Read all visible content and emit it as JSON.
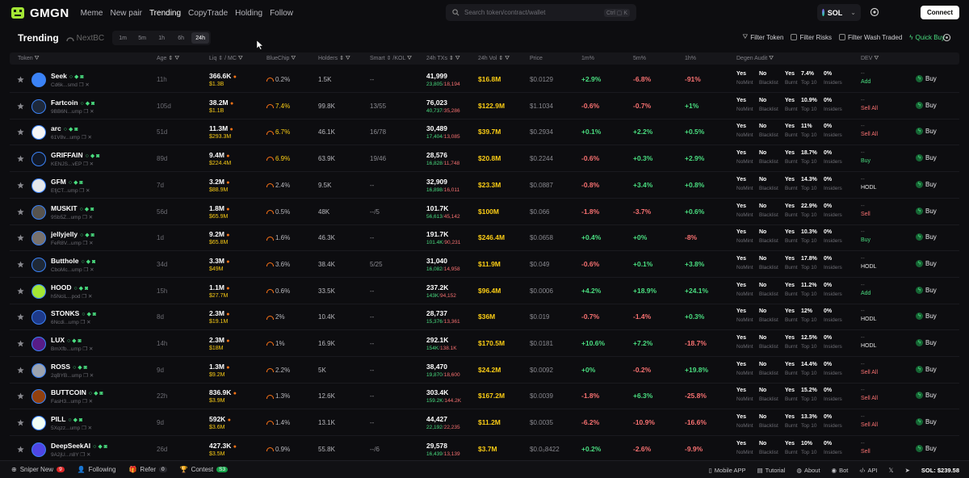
{
  "app": {
    "name": "GMGN"
  },
  "nav": {
    "items": [
      "Meme",
      "New pair",
      "Trending",
      "CopyTrade",
      "Holding",
      "Follow"
    ],
    "active": "Trending"
  },
  "search": {
    "placeholder": "Search token/contract/wallet",
    "shortcut": "Ctrl ▢ K"
  },
  "chain": {
    "label": "SOL"
  },
  "connect_label": "Connect",
  "subheader": {
    "title": "Trending",
    "nextbc": "NextBC",
    "timeframes": [
      "1m",
      "5m",
      "1h",
      "6h",
      "24h"
    ],
    "active_timeframe": "24h",
    "filters": [
      "Filter Token",
      "Filter Risks",
      "Filter Wash Traded",
      "Quick Buy"
    ]
  },
  "columns": [
    "Token",
    "Age",
    "Liq ⇕ / MC",
    "BlueChip",
    "Holders",
    "Smart ⇕ /KOL",
    "24h TXs",
    "24h Vol",
    "Price",
    "1m%",
    "5m%",
    "1h%",
    "Degen Audit",
    "DEV"
  ],
  "audit_labels": {
    "nomint": "NoMint",
    "blacklist": "Blacklist",
    "burnt": "Burnt",
    "top10": "Top 10",
    "insiders": "Insiders"
  },
  "buy_label": "Buy",
  "rows": [
    {
      "name": "Seek",
      "addr": "Cd6k...smd",
      "age": "11h",
      "liq": "366.6K",
      "mc": "$1.3B",
      "bluechip": "0.2%",
      "holders": "1.5K",
      "smart": "--",
      "txs": "41,999",
      "buys": "23,805",
      "sells": "18,194",
      "vol": "$16.8M",
      "price": "$0.0129",
      "m1": "+2.9%",
      "m5": "-6.8%",
      "h1": "-91%",
      "a1": "Yes",
      "a2": "No",
      "a3": "Yes",
      "a4": "7.4%",
      "a5": "0%",
      "dev": "Add",
      "av": "#3b82f6"
    },
    {
      "name": "Fartcoin",
      "addr": "9BB6N...ump",
      "age": "105d",
      "liq": "38.2M",
      "mc": "$1.1B",
      "bluechip": "7.4%",
      "holders": "99.8K",
      "smart": "13/55",
      "txs": "76,023",
      "buys": "40,737",
      "sells": "35,286",
      "vol": "$122.9M",
      "price": "$1.1034",
      "m1": "-0.6%",
      "m5": "-0.7%",
      "h1": "+1%",
      "a1": "Yes",
      "a2": "No",
      "a3": "Yes",
      "a4": "10.9%",
      "a5": "0%",
      "dev": "Sell All",
      "av": "#1e293b"
    },
    {
      "name": "arc",
      "addr": "61V8v...ump",
      "age": "51d",
      "liq": "11.3M",
      "mc": "$293.3M",
      "bluechip": "6.7%",
      "holders": "46.1K",
      "smart": "16/78",
      "txs": "30,489",
      "buys": "17,404",
      "sells": "13,085",
      "vol": "$39.7M",
      "price": "$0.2934",
      "m1": "+0.1%",
      "m5": "+2.2%",
      "h1": "+0.5%",
      "a1": "Yes",
      "a2": "No",
      "a3": "Yes",
      "a4": "11%",
      "a5": "0%",
      "dev": "Sell All",
      "av": "#f5f5f5"
    },
    {
      "name": "GRIFFAIN",
      "addr": "KENJS...vEP",
      "age": "89d",
      "liq": "9.4M",
      "mc": "$224.4M",
      "bluechip": "6.9%",
      "holders": "63.9K",
      "smart": "19/46",
      "txs": "28,576",
      "buys": "16,828",
      "sells": "11,748",
      "vol": "$20.8M",
      "price": "$0.2244",
      "m1": "-0.6%",
      "m5": "+0.3%",
      "h1": "+2.9%",
      "a1": "Yes",
      "a2": "No",
      "a3": "Yes",
      "a4": "18.7%",
      "a5": "0%",
      "dev": "Buy",
      "av": "#111827"
    },
    {
      "name": "GFM",
      "addr": "EfjCT...ump",
      "age": "7d",
      "liq": "3.2M",
      "mc": "$88.9M",
      "bluechip": "2.4%",
      "holders": "9.5K",
      "smart": "--",
      "txs": "32,909",
      "buys": "16,898",
      "sells": "16,011",
      "vol": "$23.3M",
      "price": "$0.0887",
      "m1": "-0.8%",
      "m5": "+3.4%",
      "h1": "+0.8%",
      "a1": "Yes",
      "a2": "No",
      "a3": "Yes",
      "a4": "14.3%",
      "a5": "0%",
      "dev": "HODL",
      "av": "#e5e7eb"
    },
    {
      "name": "MUSKIT",
      "addr": "9Sb5Z...ump",
      "age": "56d",
      "liq": "1.8M",
      "mc": "$65.9M",
      "bluechip": "0.5%",
      "holders": "48K",
      "smart": "--/5",
      "txs": "101.7K",
      "buys": "56,613",
      "sells": "45,142",
      "vol": "$100M",
      "price": "$0.066",
      "m1": "-1.8%",
      "m5": "-3.7%",
      "h1": "+0.6%",
      "a1": "Yes",
      "a2": "No",
      "a3": "Yes",
      "a4": "22.9%",
      "a5": "0%",
      "dev": "Sell",
      "av": "#57534e"
    },
    {
      "name": "jellyjelly",
      "addr": "FeR8V...ump",
      "age": "1d",
      "liq": "9.2M",
      "mc": "$65.8M",
      "bluechip": "1.6%",
      "holders": "46.3K",
      "smart": "--",
      "txs": "191.7K",
      "buys": "101.4K",
      "sells": "90,231",
      "vol": "$246.4M",
      "price": "$0.0658",
      "m1": "+0.4%",
      "m5": "+0%",
      "h1": "-8%",
      "a1": "Yes",
      "a2": "No",
      "a3": "Yes",
      "a4": "10.3%",
      "a5": "0%",
      "dev": "Buy",
      "av": "#78716c"
    },
    {
      "name": "Butthole",
      "addr": "CboMc...ump",
      "age": "34d",
      "liq": "3.3M",
      "mc": "$49M",
      "bluechip": "3.6%",
      "holders": "38.4K",
      "smart": "5/25",
      "txs": "31,040",
      "buys": "16,082",
      "sells": "14,958",
      "vol": "$11.9M",
      "price": "$0.049",
      "m1": "-0.6%",
      "m5": "+0.1%",
      "h1": "+3.8%",
      "a1": "Yes",
      "a2": "No",
      "a3": "Yes",
      "a4": "17.8%",
      "a5": "0%",
      "dev": "HODL",
      "av": "#1f2937"
    },
    {
      "name": "HOOD",
      "addr": "h5NciL...pod",
      "age": "15h",
      "liq": "1.1M",
      "mc": "$27.7M",
      "bluechip": "0.6%",
      "holders": "33.5K",
      "smart": "--",
      "txs": "237.2K",
      "buys": "143K",
      "sells": "94,152",
      "vol": "$96.4M",
      "price": "$0.0006",
      "m1": "+4.2%",
      "m5": "+18.9%",
      "h1": "+24.1%",
      "a1": "Yes",
      "a2": "No",
      "a3": "Yes",
      "a4": "11.2%",
      "a5": "0%",
      "dev": "Add",
      "av": "#a3e635"
    },
    {
      "name": "STONKS",
      "addr": "6Ncdi...ump",
      "age": "8d",
      "liq": "2.3M",
      "mc": "$19.1M",
      "bluechip": "2%",
      "holders": "10.4K",
      "smart": "--",
      "txs": "28,737",
      "buys": "15,376",
      "sells": "13,361",
      "vol": "$36M",
      "price": "$0.019",
      "m1": "-0.7%",
      "m5": "-1.4%",
      "h1": "+0.3%",
      "a1": "Yes",
      "a2": "No",
      "a3": "Yes",
      "a4": "12%",
      "a5": "0%",
      "dev": "HODL",
      "av": "#1e3a8a"
    },
    {
      "name": "LUX",
      "addr": "BmXfb...ump",
      "age": "14h",
      "liq": "2.3M",
      "mc": "$18M",
      "bluechip": "1%",
      "holders": "16.9K",
      "smart": "--",
      "txs": "292.1K",
      "buys": "154K",
      "sells": "138.1K",
      "vol": "$170.5M",
      "price": "$0.0181",
      "m1": "+10.6%",
      "m5": "+7.2%",
      "h1": "-18.7%",
      "a1": "Yes",
      "a2": "No",
      "a3": "Yes",
      "a4": "12.5%",
      "a5": "0%",
      "dev": "HODL",
      "av": "#581c87"
    },
    {
      "name": "ROSS",
      "addr": "2qBYB...ump",
      "age": "9d",
      "liq": "1.3M",
      "mc": "$9.2M",
      "bluechip": "2.2%",
      "holders": "5K",
      "smart": "--",
      "txs": "38,470",
      "buys": "19,870",
      "sells": "18,600",
      "vol": "$24.2M",
      "price": "$0.0092",
      "m1": "+0%",
      "m5": "-0.2%",
      "h1": "+19.8%",
      "a1": "Yes",
      "a2": "No",
      "a3": "Yes",
      "a4": "14.4%",
      "a5": "0%",
      "dev": "Sell All",
      "av": "#9ca3af"
    },
    {
      "name": "BUTTCOIN",
      "addr": "FasH3...ump",
      "age": "22h",
      "liq": "836.9K",
      "mc": "$3.9M",
      "bluechip": "1.3%",
      "holders": "12.6K",
      "smart": "--",
      "txs": "303.4K",
      "buys": "159.2K",
      "sells": "144.2K",
      "vol": "$167.2M",
      "price": "$0.0039",
      "m1": "-1.8%",
      "m5": "+6.3%",
      "h1": "-25.8%",
      "a1": "Yes",
      "a2": "No",
      "a3": "Yes",
      "a4": "15.2%",
      "a5": "0%",
      "dev": "Sell All",
      "av": "#92400e"
    },
    {
      "name": "PILL",
      "addr": "5Xqzz...ump",
      "age": "9d",
      "liq": "592K",
      "mc": "$3.6M",
      "bluechip": "1.4%",
      "holders": "13.1K",
      "smart": "--",
      "txs": "44,427",
      "buys": "22,192",
      "sells": "22,235",
      "vol": "$11.2M",
      "price": "$0.0035",
      "m1": "-6.2%",
      "m5": "-10.9%",
      "h1": "-16.6%",
      "a1": "Yes",
      "a2": "No",
      "a3": "Yes",
      "a4": "13.3%",
      "a5": "0%",
      "dev": "Sell All",
      "av": "#f0fdf4"
    },
    {
      "name": "DeepSeekAI",
      "addr": "9A2jU...n8Y",
      "age": "26d",
      "liq": "427.3K",
      "mc": "$3.5M",
      "bluechip": "0.9%",
      "holders": "55.8K",
      "smart": "--/6",
      "txs": "29,578",
      "buys": "16,439",
      "sells": "13,139",
      "vol": "$3.7M",
      "price": "$0.0₀8422",
      "m1": "+0.2%",
      "m5": "-2.6%",
      "h1": "-9.9%",
      "a1": "Yes",
      "a2": "No",
      "a3": "Yes",
      "a4": "10%",
      "a5": "0%",
      "dev": "Sell",
      "av": "#4f46e5"
    }
  ],
  "footer": {
    "sniper": "Sniper New",
    "sniper_count": "9",
    "following": "Following",
    "refer": "Refer",
    "refer_count": "0",
    "contest": "Contest",
    "contest_badge": "S3",
    "right": [
      "Mobile APP",
      "Tutorial",
      "About",
      "Bot",
      "API"
    ],
    "sol_balance": "SOL: $239.58"
  },
  "colors": {
    "bg": "#0d0d10",
    "positive": "#4ade80",
    "negative": "#f87171",
    "accent_yellow": "#facc15"
  }
}
